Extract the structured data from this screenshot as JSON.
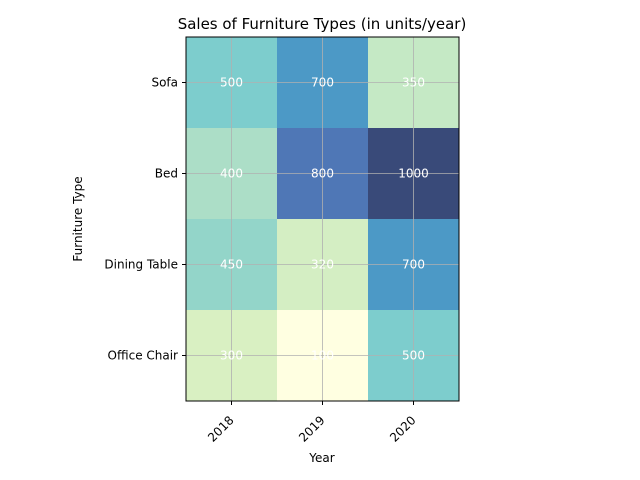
{
  "chart_data": {
    "type": "heatmap",
    "title": "Sales of Furniture Types (in units/year)",
    "xlabel": "Year",
    "ylabel": "Furniture Type",
    "x_categories": [
      "2018",
      "2019",
      "2020"
    ],
    "y_categories": [
      "Sofa",
      "Bed",
      "Dining Table",
      "Office Chair"
    ],
    "values": [
      [
        500,
        700,
        350
      ],
      [
        400,
        800,
        1000
      ],
      [
        450,
        320,
        700
      ],
      [
        300,
        100,
        500
      ]
    ],
    "colormap": "YlGnBu",
    "vmin": 100,
    "vmax": 1000,
    "grid": true,
    "x_tick_rotation": 45
  }
}
